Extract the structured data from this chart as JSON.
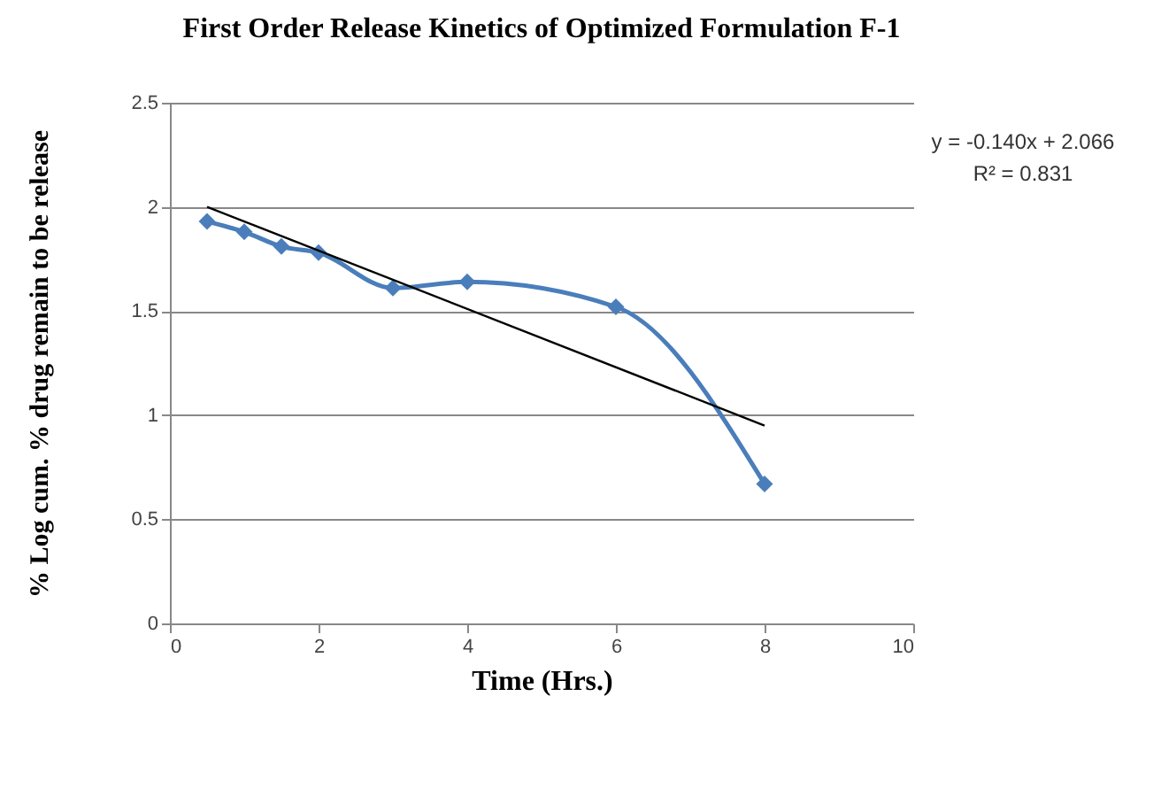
{
  "chart_data": {
    "type": "line",
    "title": "First Order Release Kinetics of Optimized Formulation F-1",
    "xlabel": "Time (Hrs.)",
    "ylabel": "% Log cum. % drug remain to be release",
    "x": [
      0.5,
      1,
      1.5,
      2,
      3,
      4,
      6,
      8
    ],
    "series": [
      {
        "color": "#4a7ebb",
        "marker": "diamond",
        "values": [
          1.93,
          1.88,
          1.81,
          1.78,
          1.61,
          1.64,
          1.52,
          0.67
        ]
      },
      {
        "type": "line",
        "color": "#000000",
        "marker": "none",
        "x": [
          0.5,
          8
        ],
        "values": [
          2.0,
          0.95
        ]
      }
    ],
    "annotations": [
      "y = -0.140x + 2.066",
      "R² = 0.831"
    ],
    "xlim": [
      0,
      10
    ],
    "xticks": [
      0,
      2,
      4,
      6,
      8,
      10
    ],
    "ylim": [
      0,
      2.5
    ],
    "yticks": [
      0,
      0.5,
      1,
      1.5,
      2,
      2.5
    ],
    "grid": "y"
  }
}
